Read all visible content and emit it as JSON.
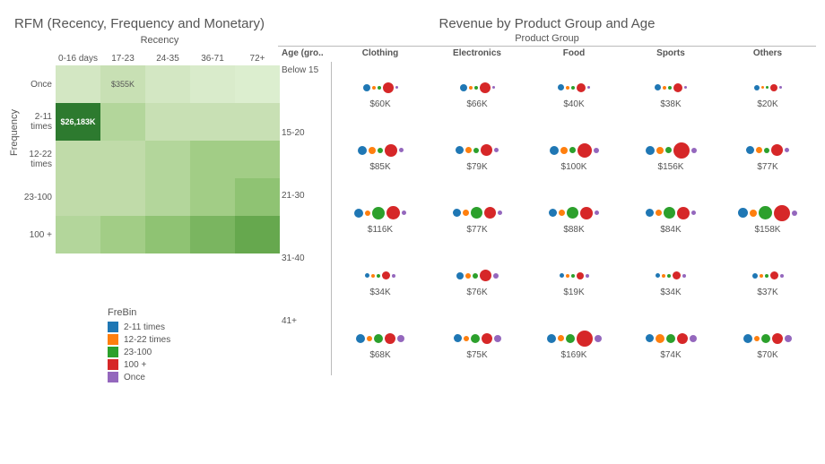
{
  "rfm": {
    "title": "RFM (Recency, Frequency and Monetary)",
    "x_axis_label": "Recency",
    "y_axis_label": "Frequency",
    "columns": [
      "0-16 days",
      "17-23",
      "24-35",
      "36-71",
      "72+"
    ],
    "rows": [
      "Once",
      "2-11 times",
      "12-22 times",
      "23-100",
      "100 +"
    ],
    "cell_colors": [
      [
        "#d3e7c3",
        "#c8e0b4",
        "#d3e7c3",
        "#d9ebcb",
        "#dceecf"
      ],
      [
        "#2d7a2f",
        "#b3d69b",
        "#c8e0b4",
        "#c8e0b4",
        "#c8e0b4"
      ],
      [
        "#c0dba9",
        "#c0dba9",
        "#b3d69b",
        "#a2cd86",
        "#a2cd86"
      ],
      [
        "#c0dba9",
        "#c0dba9",
        "#b3d69b",
        "#a2cd86",
        "#8fc373"
      ],
      [
        "#b3d69b",
        "#a2cd86",
        "#8fc373",
        "#7ab560",
        "#66a84e"
      ]
    ],
    "cell_labels": [
      [
        "",
        "$355K",
        "",
        "",
        ""
      ],
      [
        "$26,183K",
        "",
        "",
        "",
        ""
      ],
      [
        "",
        "",
        "",
        "",
        ""
      ],
      [
        "",
        "",
        "",
        "",
        ""
      ],
      [
        "",
        "",
        "",
        "",
        ""
      ]
    ],
    "highlight": {
      "row": 1,
      "col": 0
    }
  },
  "legend": {
    "title": "FreBin",
    "items": [
      {
        "label": "2-11 times",
        "color": "#1f77b4"
      },
      {
        "label": "12-22 times",
        "color": "#ff7f0e"
      },
      {
        "label": "23-100",
        "color": "#2ca02c"
      },
      {
        "label": "100 +",
        "color": "#d62728"
      },
      {
        "label": "Once",
        "color": "#9467bd"
      }
    ]
  },
  "revenue": {
    "title": "Revenue by Product Group and Age",
    "group_label": "Product Group",
    "age_header": "Age (gro..",
    "columns": [
      "Clothing",
      "Electronics",
      "Food",
      "Sports",
      "Others"
    ],
    "age_rows": [
      "Below 15",
      "15-20",
      "21-30",
      "31-40",
      "41+"
    ],
    "dot_colors": [
      "#1f77b4",
      "#ff7f0e",
      "#2ca02c",
      "#d62728",
      "#9467bd"
    ],
    "cells": [
      [
        {
          "label": "$60K",
          "sizes": [
            8,
            4,
            4,
            12,
            3
          ]
        },
        {
          "label": "$66K",
          "sizes": [
            8,
            4,
            4,
            12,
            3
          ]
        },
        {
          "label": "$40K",
          "sizes": [
            7,
            4,
            4,
            10,
            3
          ]
        },
        {
          "label": "$38K",
          "sizes": [
            7,
            4,
            4,
            10,
            3
          ]
        },
        {
          "label": "$20K",
          "sizes": [
            6,
            3,
            3,
            8,
            3
          ]
        }
      ],
      [
        {
          "label": "$85K",
          "sizes": [
            10,
            8,
            6,
            14,
            5
          ]
        },
        {
          "label": "$79K",
          "sizes": [
            9,
            7,
            6,
            13,
            5
          ]
        },
        {
          "label": "$100K",
          "sizes": [
            10,
            8,
            7,
            16,
            6
          ]
        },
        {
          "label": "$156K",
          "sizes": [
            10,
            8,
            7,
            18,
            6
          ]
        },
        {
          "label": "$77K",
          "sizes": [
            9,
            7,
            6,
            13,
            5
          ]
        }
      ],
      [
        {
          "label": "$116K",
          "sizes": [
            10,
            6,
            14,
            15,
            5
          ]
        },
        {
          "label": "$77K",
          "sizes": [
            9,
            7,
            13,
            13,
            5
          ]
        },
        {
          "label": "$88K",
          "sizes": [
            9,
            7,
            13,
            14,
            5
          ]
        },
        {
          "label": "$84K",
          "sizes": [
            9,
            7,
            13,
            14,
            5
          ]
        },
        {
          "label": "$158K",
          "sizes": [
            11,
            8,
            15,
            18,
            6
          ]
        }
      ],
      [
        {
          "label": "$34K",
          "sizes": [
            5,
            4,
            4,
            9,
            4
          ]
        },
        {
          "label": "$76K",
          "sizes": [
            8,
            6,
            6,
            13,
            6
          ]
        },
        {
          "label": "$19K",
          "sizes": [
            5,
            4,
            4,
            8,
            4
          ]
        },
        {
          "label": "$34K",
          "sizes": [
            5,
            4,
            4,
            9,
            4
          ]
        },
        {
          "label": "$37K",
          "sizes": [
            6,
            4,
            4,
            9,
            4
          ]
        }
      ],
      [
        {
          "label": "$68K",
          "sizes": [
            10,
            6,
            10,
            12,
            8
          ]
        },
        {
          "label": "$75K",
          "sizes": [
            9,
            6,
            10,
            12,
            8
          ]
        },
        {
          "label": "$169K",
          "sizes": [
            10,
            7,
            10,
            18,
            8
          ]
        },
        {
          "label": "$74K",
          "sizes": [
            9,
            10,
            10,
            12,
            8
          ]
        },
        {
          "label": "$70K",
          "sizes": [
            10,
            6,
            10,
            12,
            8
          ]
        }
      ]
    ]
  }
}
